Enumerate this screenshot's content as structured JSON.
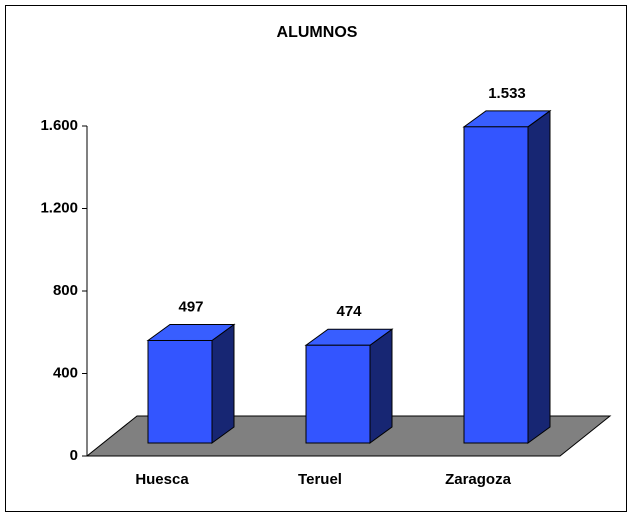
{
  "chart_data": {
    "type": "bar3d",
    "title": "ALUMNOS",
    "categories": [
      "Huesca",
      "Teruel",
      "Zaragoza"
    ],
    "values": [
      497,
      474,
      1533
    ],
    "value_labels": [
      "497",
      "474",
      "1.533"
    ],
    "color": "#3355ff",
    "ylim": [
      0,
      1600
    ],
    "yticks": [
      0,
      400,
      800,
      {
        "value": 1200,
        "label": "1.200"
      },
      {
        "value": 1600,
        "label": "1.600"
      }
    ]
  }
}
